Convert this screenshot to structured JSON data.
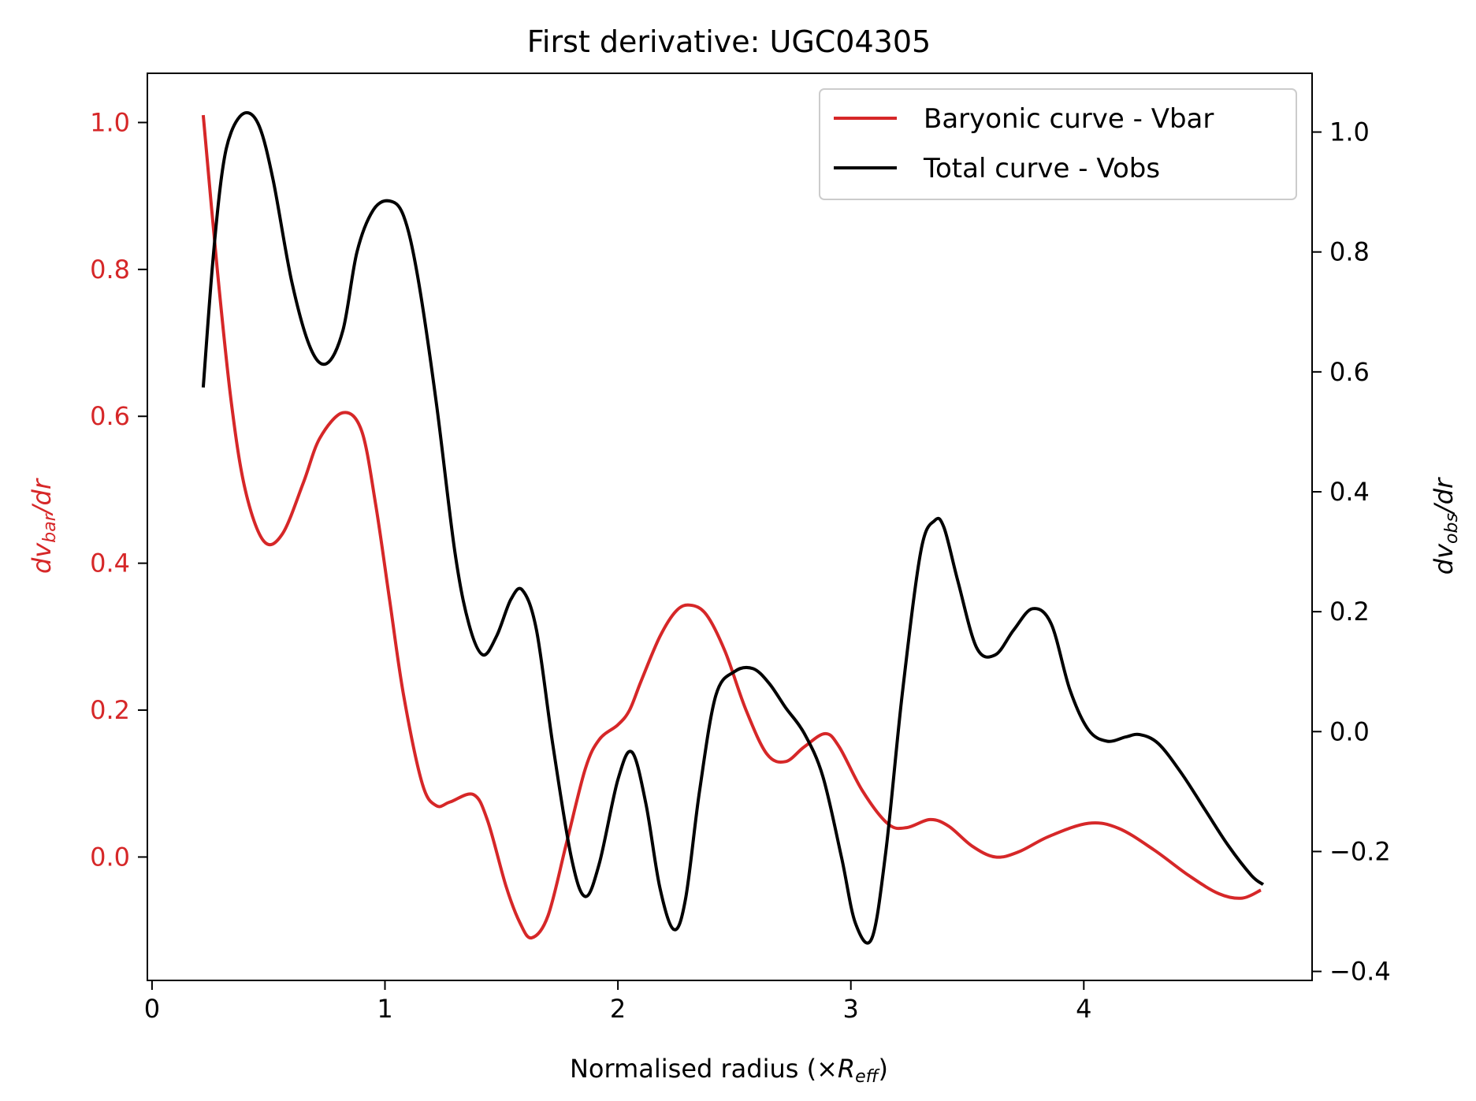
{
  "chart_data": {
    "type": "line",
    "title": "First derivative: UGC04305",
    "xlabel": {
      "prefix": "Normalised radius (×",
      "symbol": "R",
      "sub": "eff",
      "suffix": ")"
    },
    "ylabel_left": {
      "prefix": "dv",
      "sub": "bar",
      "suffix": "/dr"
    },
    "ylabel_right": {
      "prefix": "dv",
      "sub": "obs",
      "suffix": "/dr"
    },
    "xlim": [
      -0.02,
      4.98
    ],
    "ylim_left": [
      -0.168,
      1.067
    ],
    "ylim_right": [
      -0.415,
      1.098
    ],
    "x_ticks": [
      0,
      1,
      2,
      3,
      4
    ],
    "x_tick_labels": [
      "0",
      "1",
      "2",
      "3",
      "4"
    ],
    "y_ticks_left": [
      0.0,
      0.2,
      0.4,
      0.6,
      0.8,
      1.0
    ],
    "y_tick_labels_left": [
      "0.0",
      "0.2",
      "0.4",
      "0.6",
      "0.8",
      "1.0"
    ],
    "y_ticks_right": [
      -0.4,
      -0.2,
      0.0,
      0.2,
      0.4,
      0.6,
      0.8,
      1.0
    ],
    "y_tick_labels_right": [
      "−0.4",
      "−0.2",
      "0.0",
      "0.2",
      "0.4",
      "0.6",
      "0.8",
      "1.0"
    ],
    "legend_position": "top-right",
    "colors": {
      "left_axis": "#d62728",
      "right_axis": "#000000"
    },
    "series": [
      {
        "name": "Baryonic curve - Vbar",
        "axis": "left",
        "color": "#d62728",
        "x": [
          0.22,
          0.28,
          0.34,
          0.4,
          0.48,
          0.56,
          0.65,
          0.72,
          0.82,
          0.9,
          0.96,
          1.02,
          1.08,
          1.16,
          1.22,
          1.28,
          1.38,
          1.44,
          1.52,
          1.58,
          1.63,
          1.7,
          1.78,
          1.86,
          1.92,
          2.0,
          2.05,
          2.1,
          2.18,
          2.25,
          2.31,
          2.38,
          2.46,
          2.55,
          2.64,
          2.72,
          2.8,
          2.89,
          2.95,
          3.05,
          3.16,
          3.24,
          3.34,
          3.42,
          3.52,
          3.62,
          3.72,
          3.85,
          4.02,
          4.15,
          4.3,
          4.45,
          4.58,
          4.68,
          4.76
        ],
        "y": [
          1.01,
          0.8,
          0.62,
          0.5,
          0.43,
          0.44,
          0.51,
          0.57,
          0.605,
          0.58,
          0.48,
          0.35,
          0.22,
          0.1,
          0.07,
          0.075,
          0.085,
          0.05,
          -0.04,
          -0.09,
          -0.11,
          -0.08,
          0.02,
          0.12,
          0.16,
          0.18,
          0.2,
          0.24,
          0.3,
          0.335,
          0.343,
          0.33,
          0.28,
          0.2,
          0.14,
          0.13,
          0.15,
          0.168,
          0.15,
          0.09,
          0.045,
          0.04,
          0.051,
          0.042,
          0.015,
          0.0,
          0.007,
          0.028,
          0.046,
          0.039,
          0.01,
          -0.025,
          -0.05,
          -0.056,
          -0.045
        ]
      },
      {
        "name": "Total curve - Vobs",
        "axis": "right",
        "color": "#000000",
        "x": [
          0.22,
          0.26,
          0.3,
          0.34,
          0.4,
          0.46,
          0.52,
          0.6,
          0.68,
          0.75,
          0.82,
          0.88,
          0.95,
          1.02,
          1.08,
          1.14,
          1.22,
          1.3,
          1.36,
          1.42,
          1.48,
          1.54,
          1.59,
          1.65,
          1.72,
          1.8,
          1.86,
          1.92,
          2.0,
          2.06,
          2.12,
          2.18,
          2.24,
          2.29,
          2.35,
          2.42,
          2.5,
          2.58,
          2.65,
          2.72,
          2.8,
          2.88,
          2.96,
          3.02,
          3.09,
          3.15,
          3.22,
          3.3,
          3.36,
          3.4,
          3.46,
          3.54,
          3.62,
          3.7,
          3.78,
          3.86,
          3.94,
          4.02,
          4.1,
          4.18,
          4.24,
          4.32,
          4.42,
          4.52,
          4.62,
          4.72,
          4.77
        ],
        "y": [
          0.574,
          0.78,
          0.93,
          1.0,
          1.032,
          1.01,
          0.92,
          0.75,
          0.64,
          0.614,
          0.67,
          0.8,
          0.87,
          0.885,
          0.86,
          0.76,
          0.55,
          0.3,
          0.18,
          0.128,
          0.16,
          0.22,
          0.236,
          0.17,
          -0.02,
          -0.21,
          -0.275,
          -0.22,
          -0.08,
          -0.034,
          -0.12,
          -0.26,
          -0.33,
          -0.28,
          -0.1,
          0.06,
          0.1,
          0.105,
          0.08,
          0.04,
          -0.003,
          -0.075,
          -0.21,
          -0.32,
          -0.345,
          -0.2,
          0.06,
          0.3,
          0.352,
          0.34,
          0.25,
          0.14,
          0.128,
          0.17,
          0.205,
          0.18,
          0.07,
          0.003,
          -0.016,
          -0.009,
          -0.005,
          -0.02,
          -0.07,
          -0.13,
          -0.19,
          -0.24,
          -0.255
        ]
      }
    ]
  }
}
